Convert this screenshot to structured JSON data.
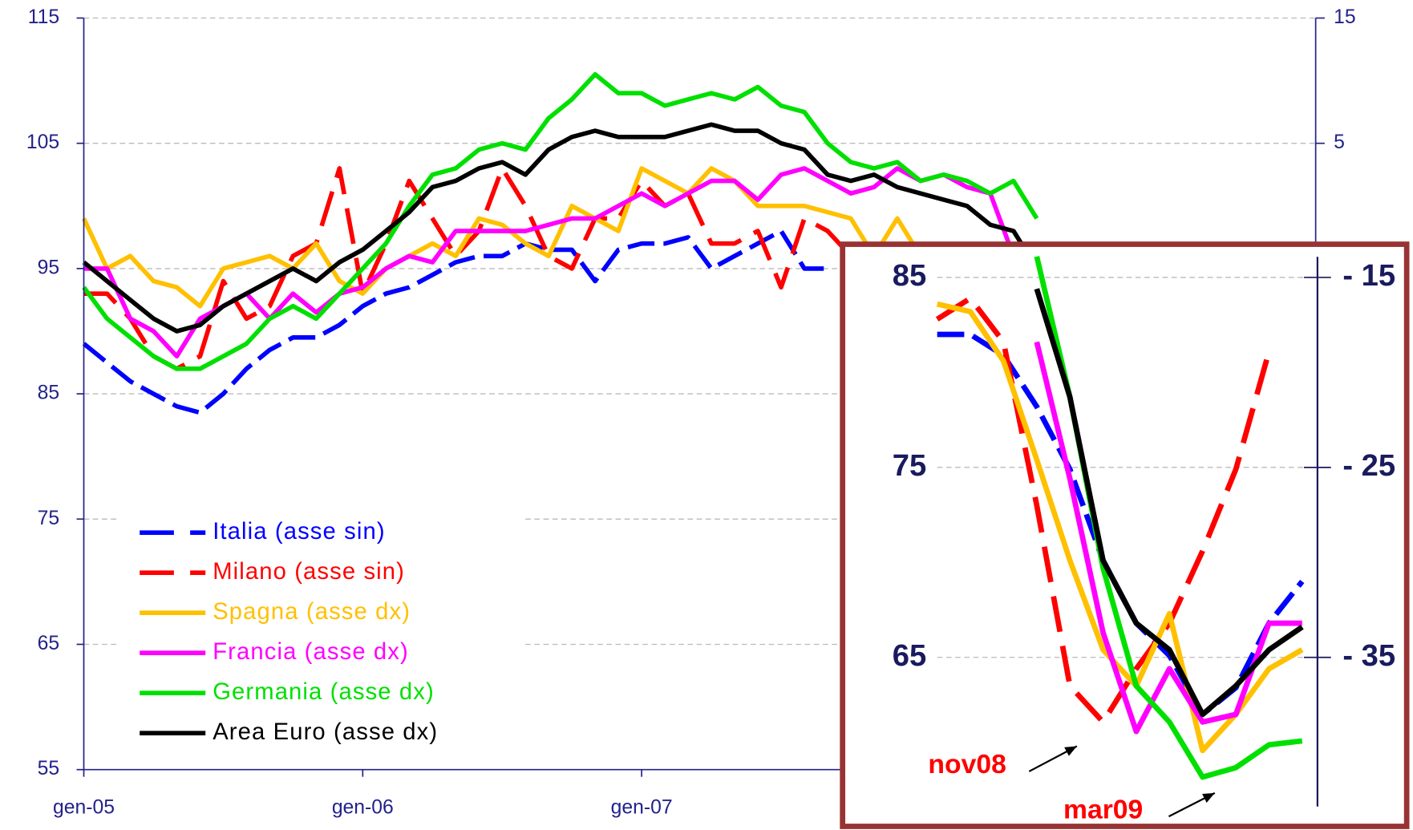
{
  "chart_data": [
    {
      "type": "line",
      "categories": [
        "gen-05",
        null,
        null,
        null,
        null,
        null,
        null,
        null,
        null,
        null,
        null,
        null,
        "gen-06",
        null,
        null,
        null,
        null,
        null,
        null,
        null,
        null,
        null,
        null,
        null,
        "gen-07",
        null,
        null,
        null,
        null,
        null,
        null,
        null,
        null,
        null,
        null,
        null,
        null,
        null,
        null,
        null,
        null,
        null,
        null,
        null,
        null,
        null,
        null,
        null,
        null,
        null,
        null,
        null,
        null,
        null
      ],
      "ylim": [
        55,
        115
      ],
      "yticks": [
        55,
        65,
        75,
        85,
        95,
        105,
        115
      ],
      "y2lim": [
        -45,
        15
      ],
      "y2ticks": [
        5,
        15
      ],
      "grid": true,
      "legend": "lower left",
      "series": [
        {
          "name": "Italia (asse sin)",
          "color": "#0000ff",
          "style": "dashed",
          "axis": "y",
          "values": [
            89,
            87.5,
            86,
            85,
            84,
            83.5,
            85,
            87,
            88.5,
            89.5,
            89.5,
            90.5,
            92,
            93,
            93.5,
            94.5,
            95.5,
            96,
            96,
            97,
            96.5,
            96.5,
            94,
            96.5,
            97,
            97,
            97.5,
            95,
            96,
            97,
            98,
            95,
            95,
            null,
            null,
            null,
            null,
            null,
            null,
            null,
            null,
            null,
            null,
            null,
            null,
            null,
            null,
            null,
            null,
            null,
            null,
            null,
            null,
            null
          ]
        },
        {
          "name": "Milano (asse sin)",
          "color": "#ff0000",
          "style": "dashed",
          "axis": "y",
          "values": [
            93,
            93,
            91,
            88,
            87,
            88,
            94,
            91,
            92,
            96,
            97,
            103,
            93,
            97,
            102,
            99,
            96,
            98,
            103,
            100,
            96,
            95,
            99,
            99,
            102,
            100,
            101,
            97,
            97,
            98,
            93.5,
            99,
            98,
            96,
            94,
            null,
            null,
            null,
            null,
            null,
            null,
            null,
            null,
            null,
            null,
            null,
            null,
            null,
            null,
            null,
            null,
            null,
            null,
            null
          ]
        },
        {
          "name": "Spagna (asse dx)",
          "color": "#ffc000",
          "style": "solid",
          "axis": "y2",
          "values": [
            -1,
            -5,
            -4,
            -6,
            -6.5,
            -8,
            -5,
            -4.5,
            -4,
            -5,
            -3,
            -6,
            -7,
            -5,
            -4,
            -3,
            -4,
            -1,
            -1.5,
            -3,
            -4,
            0,
            -1,
            -2,
            3,
            2,
            1,
            3,
            2,
            0,
            0,
            0,
            -0.5,
            -1,
            -4,
            -1,
            -4,
            null,
            null,
            null,
            null,
            null,
            null,
            null,
            null,
            null,
            null,
            null,
            null,
            null,
            null,
            null,
            null,
            null
          ]
        },
        {
          "name": "Francia (asse dx)",
          "color": "#ff00ff",
          "style": "solid",
          "axis": "y2",
          "values": [
            -5,
            -5,
            -9,
            -10,
            -12,
            -9,
            -8,
            -7,
            -9,
            -7,
            -8.5,
            -7,
            -6.5,
            -5,
            -4,
            -4.5,
            -2,
            -2,
            -2,
            -2,
            -1.5,
            -1,
            -1,
            0,
            1,
            0,
            1,
            2,
            2,
            0.5,
            2.5,
            3,
            2,
            1,
            1.5,
            3,
            2,
            2.5,
            1.5,
            1,
            -4,
            null,
            null,
            null,
            null,
            null,
            null,
            null,
            null,
            null,
            null,
            null,
            null,
            null
          ]
        },
        {
          "name": "Germania (asse dx)",
          "color": "#00e000",
          "style": "solid",
          "axis": "y2",
          "values": [
            -6.5,
            -9,
            -10.5,
            -12,
            -13,
            -13,
            -12,
            -11,
            -9,
            -8,
            -9,
            -7,
            -5,
            -3,
            0,
            2.5,
            3,
            4.5,
            5,
            4.5,
            7,
            8.5,
            10.5,
            9,
            9,
            8,
            8.5,
            9,
            8.5,
            9.5,
            8,
            7.5,
            5,
            3.5,
            3,
            3.5,
            2,
            2.5,
            2,
            1,
            2,
            -1,
            null,
            null,
            null,
            null,
            null,
            null,
            null,
            null,
            null,
            null,
            null,
            null
          ]
        },
        {
          "name": "Area Euro (asse dx)",
          "color": "#000000",
          "style": "solid",
          "axis": "y2",
          "values": [
            -4.5,
            -6,
            -7.5,
            -9,
            -10,
            -9.5,
            -8,
            -7,
            -6,
            -5,
            -6,
            -4.5,
            -3.5,
            -2,
            -0.5,
            1.5,
            2,
            3,
            3.5,
            2.5,
            4.5,
            5.5,
            6,
            5.5,
            5.5,
            5.5,
            6,
            6.5,
            6,
            6,
            5,
            4.5,
            2.5,
            2,
            2.5,
            1.5,
            1,
            0.5,
            0,
            -1.5,
            -2,
            -5,
            null,
            null,
            null,
            null,
            null,
            null,
            null,
            null,
            null,
            null,
            null,
            null
          ]
        }
      ]
    },
    {
      "type": "line",
      "categories": [
        null,
        null,
        null,
        null,
        null,
        null,
        null,
        null,
        null,
        null,
        null,
        null
      ],
      "ylim": [
        56.2,
        86.7
      ],
      "yticks": [
        65,
        75,
        85
      ],
      "y2lim": [
        -43.8,
        -13.3
      ],
      "y2ticks": [
        {
          "value": -15,
          "label": "- 15"
        },
        {
          "value": -25,
          "label": "- 25"
        },
        {
          "value": -35,
          "label": "- 35"
        }
      ],
      "grid": true,
      "annotations": [
        {
          "text": "nov08",
          "color": "#ff0000"
        },
        {
          "text": "mar09",
          "color": "#ff0000"
        }
      ],
      "series": [
        {
          "color": "#0000ff",
          "style": "dashed",
          "axis": "y",
          "values": [
            82,
            82,
            80.9,
            78.2,
            74.9,
            70.1,
            66.8,
            65.1,
            62,
            63.4,
            66.8,
            69
          ]
        },
        {
          "color": "#ff0000",
          "style": "dashed",
          "axis": "y",
          "values": [
            82.8,
            83.9,
            81.6,
            73,
            63.5,
            61.6,
            64.4,
            66.8,
            70.6,
            74.9,
            81.1,
            null
          ]
        },
        {
          "color": "#ffc000",
          "style": "solid",
          "axis": "y2",
          "values": [
            -16.4,
            -16.8,
            -19.4,
            -24.6,
            -29.9,
            -34.6,
            -36.5,
            -32.7,
            -39.9,
            -38,
            -35.6,
            -34.6
          ]
        },
        {
          "color": "#ff00ff",
          "style": "solid",
          "axis": "y2",
          "values": [
            null,
            null,
            null,
            -18.4,
            -25.6,
            -33.7,
            -38.9,
            -35.6,
            -38.4,
            -38,
            -33.2,
            -33.2
          ]
        },
        {
          "color": "#00e000",
          "style": "solid",
          "axis": "y2",
          "values": [
            null,
            null,
            null,
            -13.9,
            -21.3,
            -30.3,
            -36.5,
            -38.4,
            -41.3,
            -40.8,
            -39.6,
            -39.4
          ]
        },
        {
          "color": "#000000",
          "style": "solid",
          "axis": "y2",
          "values": [
            null,
            null,
            null,
            -15.6,
            -21.3,
            -29.9,
            -33.2,
            -34.6,
            -38,
            -36.5,
            -34.6,
            -33.4
          ]
        }
      ]
    }
  ]
}
